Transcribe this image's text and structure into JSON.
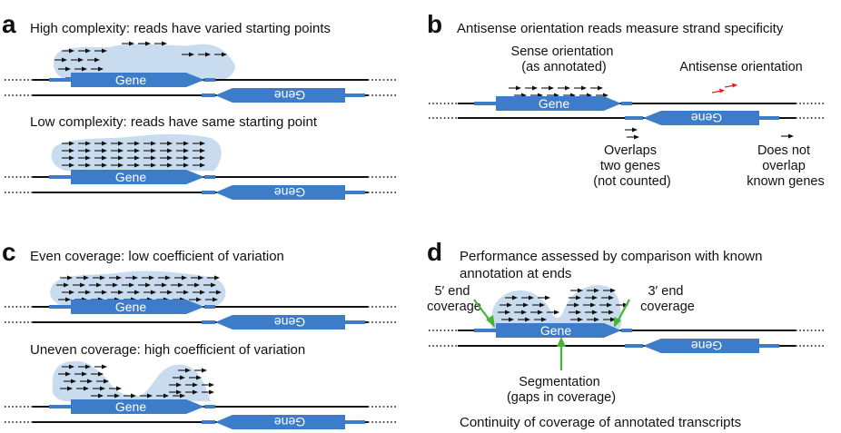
{
  "panels": {
    "a": {
      "letter": "a",
      "top_caption": "High complexity: reads have varied starting points",
      "bottom_caption": "Low complexity: reads have same starting point"
    },
    "b": {
      "letter": "b",
      "caption": "Antisense orientation reads measure strand specificity",
      "sense_label": [
        "Sense orientation",
        "(as annotated)"
      ],
      "antisense_label": "Antisense orientation",
      "overlap_label": [
        "Overlaps",
        "two genes",
        "(not counted)"
      ],
      "no_overlap_label": [
        "Does not",
        "overlap",
        "known genes"
      ]
    },
    "c": {
      "letter": "c",
      "top_caption": "Even coverage: low coefficient of variation",
      "bottom_caption": "Uneven coverage: high coefficient of variation"
    },
    "d": {
      "letter": "d",
      "caption": [
        "Performance assessed by comparison with known",
        "annotation at ends"
      ],
      "five_prime_label": [
        "5′ end",
        "coverage"
      ],
      "three_prime_label": [
        "3′ end",
        "coverage"
      ],
      "segmentation_label": [
        "Segmentation",
        "(gaps in coverage)"
      ],
      "bottom_caption": "Continuity of coverage of annotated transcripts"
    }
  },
  "gene_label": "Gene",
  "colors": {
    "gene": "#3d7cc9",
    "cloud": "#c9dcef",
    "read": "#111111",
    "antisense_read": "#e02020",
    "pointer": "#46b437"
  }
}
